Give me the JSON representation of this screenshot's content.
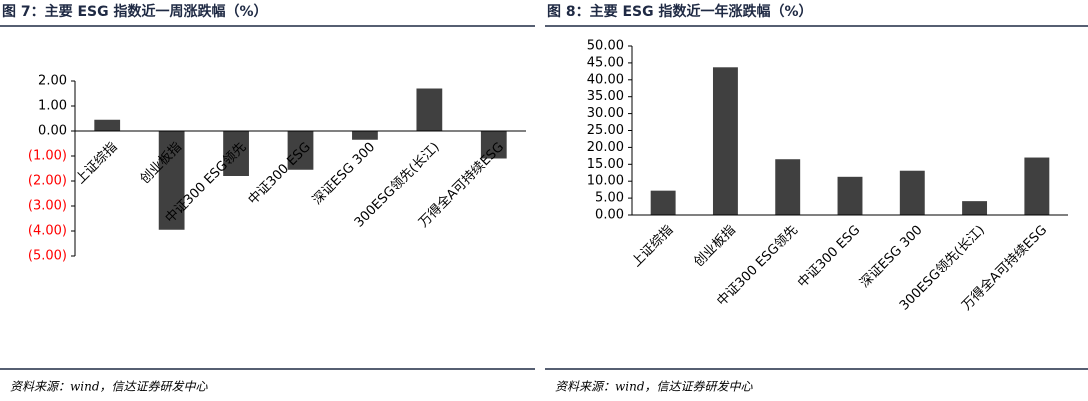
{
  "chart_data": [
    {
      "type": "bar",
      "title": "图 7：主要 ESG 指数近一周涨跌幅（%）",
      "categories": [
        "上证综指",
        "创业板指",
        "中证300 ESG领先",
        "中证300 ESG",
        "深证ESG 300",
        "300ESG领先(长江)",
        "万得全A可持续ESG"
      ],
      "values": [
        0.45,
        -3.95,
        -1.8,
        -1.55,
        -0.35,
        1.7,
        -1.1
      ],
      "color": "#404040",
      "ylim": [
        -5,
        2
      ],
      "yticks": [
        {
          "value": -5,
          "label": "(5.00)"
        },
        {
          "value": -4,
          "label": "(4.00)"
        },
        {
          "value": -3,
          "label": "(3.00)"
        },
        {
          "value": -2,
          "label": "(2.00)"
        },
        {
          "value": -1,
          "label": "(1.00)"
        },
        {
          "value": 0,
          "label": "0.00"
        },
        {
          "value": 1,
          "label": "1.00"
        },
        {
          "value": 2,
          "label": "2.00"
        }
      ],
      "negative_tick_label_color": "#ff0000",
      "source": "资料来源：wind，信达证券研发中心"
    },
    {
      "type": "bar",
      "title": "图 8：主要 ESG 指数近一年涨跌幅（%）",
      "categories": [
        "上证综指",
        "创业板指",
        "中证300 ESG领先",
        "中证300 ESG",
        "深证ESG 300",
        "300ESG领先(长江)",
        "万得全A可持续ESG"
      ],
      "values": [
        7.2,
        43.7,
        16.5,
        11.3,
        13.1,
        4.1,
        17.0
      ],
      "color": "#404040",
      "ylim": [
        0,
        50
      ],
      "yticks": [
        {
          "value": 0,
          "label": "0.00"
        },
        {
          "value": 5,
          "label": "5.00"
        },
        {
          "value": 10,
          "label": "10.00"
        },
        {
          "value": 15,
          "label": "15.00"
        },
        {
          "value": 20,
          "label": "20.00"
        },
        {
          "value": 25,
          "label": "25.00"
        },
        {
          "value": 30,
          "label": "30.00"
        },
        {
          "value": 35,
          "label": "35.00"
        },
        {
          "value": 40,
          "label": "40.00"
        },
        {
          "value": 45,
          "label": "45.00"
        },
        {
          "value": 50,
          "label": "50.00"
        }
      ],
      "source": "资料来源：wind，信达证券研发中心"
    }
  ]
}
